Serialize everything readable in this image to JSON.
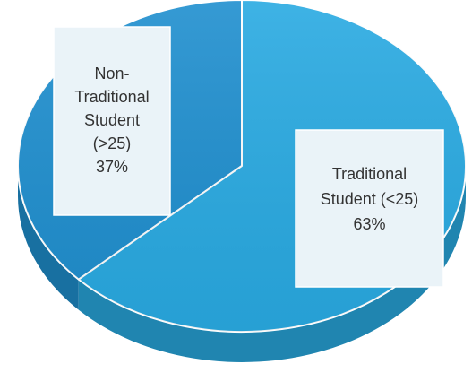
{
  "chart_data": {
    "type": "pie",
    "style": "3d",
    "title": "",
    "slices": [
      {
        "label": "Non-Traditional Student (>25)",
        "label_lines": [
          "Non-",
          "Traditional",
          "Student",
          "(>25)"
        ],
        "value": 37,
        "value_label": "37%",
        "color": "#1f8fcf"
      },
      {
        "label": "Traditional Student (<25)",
        "label_lines": [
          "Traditional",
          "Student (<25)"
        ],
        "value": 63,
        "value_label": "63%",
        "color": "#29aae2"
      }
    ],
    "start_angle_deg": 0,
    "direction": "counterclockwise-from-top",
    "legend": "none",
    "data_labels": "callout-boxes"
  }
}
